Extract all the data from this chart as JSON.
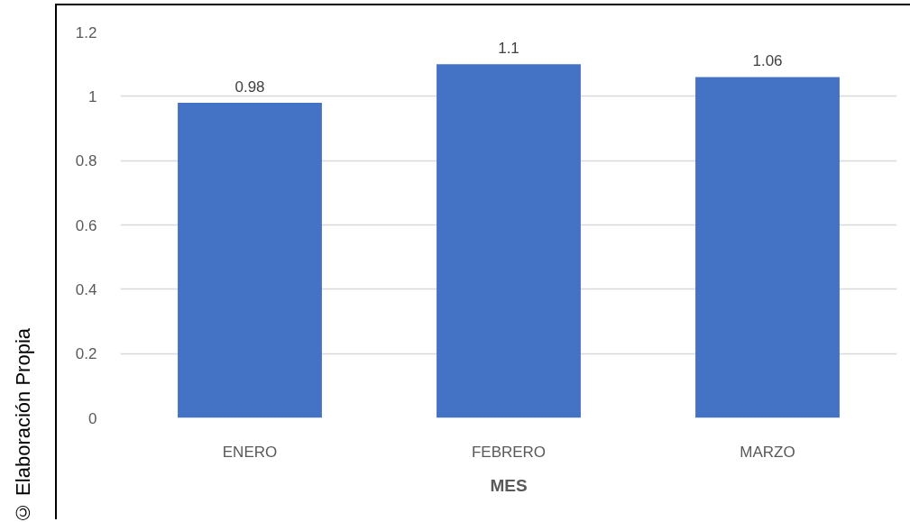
{
  "chart_data": {
    "type": "bar",
    "xlabel": "MES",
    "categories": [
      "ENERO",
      "FEBRERO",
      "MARZO"
    ],
    "values": [
      0.98,
      1.1,
      1.06
    ],
    "color": "#4472c4",
    "ylim": [
      0,
      1.2
    ],
    "yticks": [
      0,
      0.2,
      0.4,
      0.6,
      0.8,
      1,
      1.2
    ],
    "grid": "y",
    "data_labels": true,
    "annotations": [
      "© Elaboración Propia"
    ]
  }
}
